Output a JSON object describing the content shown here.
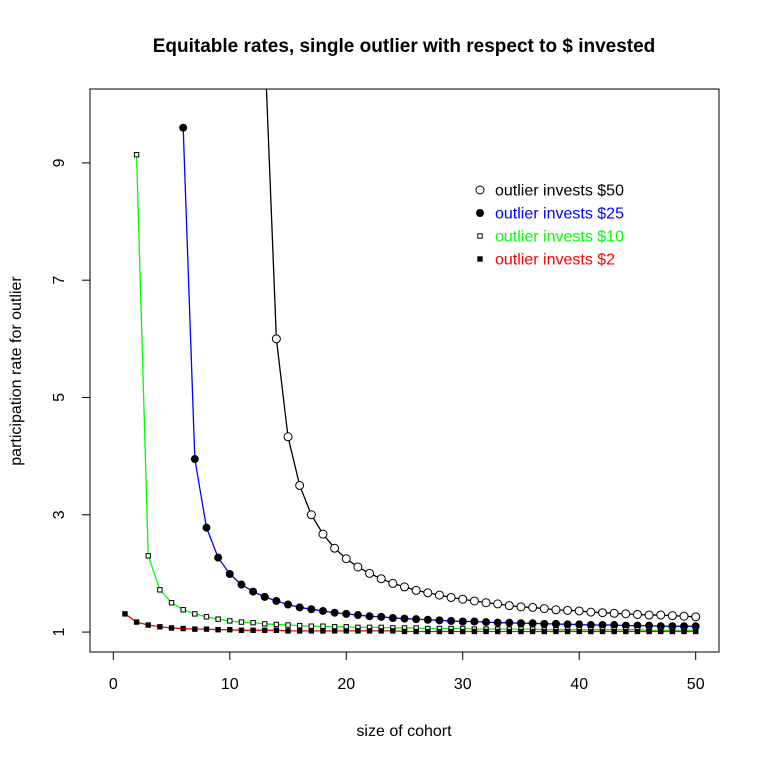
{
  "chart_data": {
    "type": "line",
    "title": "Equitable rates, single outlier with respect to $ invested",
    "xlabel": "size of cohort",
    "ylabel": "participation rate for outlier",
    "xlim": [
      -2,
      52
    ],
    "ylim": [
      0.66,
      10.26
    ],
    "x_ticks": [
      0,
      10,
      20,
      30,
      40,
      50
    ],
    "y_ticks": [
      1,
      3,
      5,
      7,
      9
    ],
    "grid": false,
    "legend_position": "top-right",
    "series": [
      {
        "name": "outlier invests $50",
        "color": "#000000",
        "marker": "open-circle",
        "formula": "y = (x-2)/(x-12) for x > 12",
        "x": [
          13,
          14,
          15,
          16,
          17,
          18,
          19,
          20,
          21,
          22,
          23,
          24,
          25,
          26,
          27,
          28,
          29,
          30,
          31,
          32,
          33,
          34,
          35,
          36,
          37,
          38,
          39,
          40,
          41,
          42,
          43,
          44,
          45,
          46,
          47,
          48,
          49,
          50
        ],
        "values": [
          11.0,
          6.0,
          4.33,
          3.5,
          3.0,
          2.67,
          2.43,
          2.25,
          2.11,
          2.0,
          1.91,
          1.83,
          1.77,
          1.71,
          1.67,
          1.63,
          1.59,
          1.56,
          1.53,
          1.5,
          1.48,
          1.45,
          1.43,
          1.42,
          1.4,
          1.38,
          1.37,
          1.36,
          1.34,
          1.33,
          1.32,
          1.31,
          1.3,
          1.29,
          1.29,
          1.28,
          1.27,
          1.26
        ]
      },
      {
        "name": "outlier invests $25",
        "color": "#0000ff",
        "marker": "filled-circle",
        "formula": "y = (x-1)/(x-5.48) for x > 5",
        "x": [
          6,
          7,
          8,
          9,
          10,
          11,
          12,
          13,
          14,
          15,
          16,
          17,
          18,
          19,
          20,
          21,
          22,
          23,
          24,
          25,
          26,
          27,
          28,
          29,
          30,
          31,
          32,
          33,
          34,
          35,
          36,
          37,
          38,
          39,
          40,
          41,
          42,
          43,
          44,
          45,
          46,
          47,
          48,
          49,
          50
        ],
        "values": [
          9.6,
          3.95,
          2.78,
          2.27,
          1.99,
          1.81,
          1.69,
          1.6,
          1.53,
          1.47,
          1.42,
          1.39,
          1.36,
          1.33,
          1.31,
          1.29,
          1.27,
          1.26,
          1.24,
          1.23,
          1.22,
          1.21,
          1.2,
          1.19,
          1.18,
          1.18,
          1.17,
          1.16,
          1.16,
          1.15,
          1.15,
          1.14,
          1.14,
          1.13,
          1.13,
          1.12,
          1.12,
          1.12,
          1.11,
          1.11,
          1.11,
          1.1,
          1.1,
          1.1,
          1.1
        ]
      },
      {
        "name": "outlier invests $10",
        "color": "#00ff00",
        "marker": "open-square",
        "formula": "y = (x-0.2)/(x-1.79) for x > 1",
        "x": [
          2,
          3,
          4,
          5,
          6,
          7,
          8,
          9,
          10,
          11,
          12,
          13,
          14,
          15,
          16,
          17,
          18,
          19,
          20,
          21,
          22,
          23,
          24,
          25,
          26,
          27,
          28,
          29,
          30,
          31,
          32,
          33,
          34,
          35,
          36,
          37,
          38,
          39,
          40,
          41,
          42,
          43,
          44,
          45,
          46,
          47,
          48,
          49,
          50
        ],
        "values": [
          9.14,
          2.3,
          1.72,
          1.5,
          1.38,
          1.31,
          1.26,
          1.22,
          1.19,
          1.17,
          1.16,
          1.14,
          1.13,
          1.12,
          1.11,
          1.1,
          1.1,
          1.09,
          1.09,
          1.08,
          1.08,
          1.08,
          1.07,
          1.07,
          1.07,
          1.06,
          1.06,
          1.06,
          1.06,
          1.05,
          1.05,
          1.05,
          1.05,
          1.05,
          1.05,
          1.04,
          1.04,
          1.04,
          1.04,
          1.04,
          1.04,
          1.04,
          1.04,
          1.04,
          1.03,
          1.03,
          1.03,
          1.03,
          1.03
        ]
      },
      {
        "name": "outlier invests $2",
        "color": "#ff0000",
        "marker": "filled-square",
        "formula": "y = (x+0.55)/(x+0.18)",
        "x": [
          1,
          2,
          3,
          4,
          5,
          6,
          7,
          8,
          9,
          10,
          11,
          12,
          13,
          14,
          15,
          16,
          17,
          18,
          19,
          20,
          21,
          22,
          23,
          24,
          25,
          26,
          27,
          28,
          29,
          30,
          31,
          32,
          33,
          34,
          35,
          36,
          37,
          38,
          39,
          40,
          41,
          42,
          43,
          44,
          45,
          46,
          47,
          48,
          49,
          50
        ],
        "values": [
          1.31,
          1.17,
          1.12,
          1.09,
          1.07,
          1.06,
          1.05,
          1.05,
          1.04,
          1.04,
          1.03,
          1.03,
          1.03,
          1.03,
          1.02,
          1.02,
          1.02,
          1.02,
          1.02,
          1.02,
          1.02,
          1.02,
          1.02,
          1.02,
          1.01,
          1.01,
          1.01,
          1.01,
          1.01,
          1.01,
          1.01,
          1.01,
          1.01,
          1.01,
          1.01,
          1.01,
          1.01,
          1.01,
          1.01,
          1.01,
          1.01,
          1.01,
          1.01,
          1.01,
          1.01,
          1.01,
          1.01,
          1.01,
          1.01,
          1.01
        ]
      }
    ]
  }
}
